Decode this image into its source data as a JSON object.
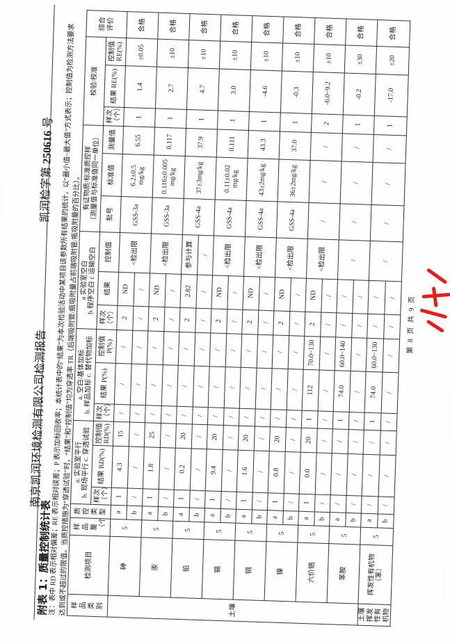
{
  "header": {
    "company_title": "南京凯润环境检测有限公司检测报告",
    "report_no_prefix": "凯润检字第",
    "report_no": "250616",
    "report_no_suffix": "号"
  },
  "table_title": "附表 1：质量控制统计表",
  "notes": [
    "注：表中 RD 表示相对偏差；RE 表示相对误差；P 表示加标回收率；本统计表中的“结果”为本次检验活动中某项目该参数所有结果的统计，以“最小值~最大值”方式表示；控制值为检测方法要求",
    "达到或不超过的限值。当质控措施为“穿透试验”时，“结果”和“控制值”均为穿透率 TR（后端吸附管/瓶吸附量占前端吸附管/瓶吸附量的百分比）。"
  ],
  "columns": {
    "category": "样品类别",
    "item": "检测项目",
    "sample_count": "样品量（个）",
    "qc_type": "质控类型",
    "parallel_group": [
      "a. 实验室平行",
      "b. 现场平行 c. 穿透试验"
    ],
    "spike_group": [
      "a. 空白/基体加标",
      "b. 样品加标 c. 替代物加标"
    ],
    "blank_group": [
      "a 实验室空白",
      "b 程序空白 c 运输空白"
    ],
    "crm_group": [
      "有证物质/标准质控样",
      "（测量值与标准值同一单位）"
    ],
    "calibration_group": "校验/校准",
    "evaluation": "综合评价",
    "count": "样次（个）",
    "result_rd": "结果 RD(%)",
    "control_rd": "控制值 RD(%)",
    "result_p": "结果 P(%)",
    "control_p": "控制值 P(%)",
    "result": "结果",
    "control": "控制值",
    "batch": "批号",
    "standard": "标准值",
    "measured": "测量值",
    "result_re": "结果 RE(%)",
    "control_re": "控制值 RE(%)"
  },
  "categories": [
    {
      "label": "土壤",
      "items": [
        {
          "name": "砷",
          "sample_count": "5",
          "rows": [
            {
              "type": "a",
              "parallel": [
                "1",
                "4.3",
                "15"
              ],
              "spike": [
                "/",
                "/",
                "/"
              ],
              "blank": [
                "2",
                "ND"
              ]
            },
            {
              "type": "b",
              "parallel": [
                "/",
                "/",
                "/"
              ],
              "spike": [
                "/",
                "/",
                "/"
              ],
              "blank": [
                "/",
                "/"
              ]
            }
          ],
          "blank_control": [
            "<检出限"
          ],
          "crm": [
            "GSS-3a",
            "6.2±0.5 mg/kg",
            "6.55"
          ],
          "calibration": [
            "1",
            "1.4",
            "±0.05"
          ],
          "evaluation": "合格"
        },
        {
          "name": "汞",
          "sample_count": "5",
          "rows": [
            {
              "type": "a",
              "parallel": [
                "1",
                "1.8",
                "25"
              ],
              "spike": [
                "/",
                "/",
                "/"
              ],
              "blank": [
                "2",
                "ND"
              ]
            },
            {
              "type": "b",
              "parallel": [
                "/",
                "/",
                "/"
              ],
              "spike": [
                "/",
                "/",
                "/"
              ],
              "blank": [
                "/",
                "/"
              ]
            }
          ],
          "blank_control": [
            "<检出限"
          ],
          "crm": [
            "GSS-3a",
            "0.116±0.005 mg/kg",
            "0.117"
          ],
          "calibration": [
            "1",
            "2.7",
            "±10"
          ],
          "evaluation": "合格"
        },
        {
          "name": "铅",
          "sample_count": "5",
          "rows": [
            {
              "type": "a",
              "parallel": [
                "1",
                "0.2",
                "20"
              ],
              "spike": [
                "/",
                "/",
                "/"
              ],
              "blank": [
                "2",
                "2.82"
              ]
            },
            {
              "type": "b",
              "parallel": [
                "/",
                "/",
                "/"
              ],
              "spike": [
                "/",
                "/",
                "/"
              ],
              "blank": [
                "/",
                "/"
              ]
            }
          ],
          "blank_control": [
            "参与计算",
            "/"
          ],
          "crm": [
            "GSS-4a",
            "37±3mg/kg",
            "37.9"
          ],
          "calibration": [
            "1",
            "4.7",
            "±10"
          ],
          "evaluation": "合格"
        },
        {
          "name": "镉",
          "sample_count": "5",
          "rows": [
            {
              "type": "a",
              "parallel": [
                "1",
                "9.4",
                "20"
              ],
              "spike": [
                "/",
                "/",
                "/"
              ],
              "blank": [
                "2",
                "ND"
              ]
            },
            {
              "type": "b",
              "parallel": [
                "/",
                "/",
                "/"
              ],
              "spike": [
                "/",
                "/",
                "/"
              ],
              "blank": [
                "/",
                "/"
              ]
            }
          ],
          "blank_control": [
            "<检出限"
          ],
          "crm": [
            "GSS-4a",
            "0.11±0.02 mg/kg",
            "0.111"
          ],
          "calibration": [
            "1",
            "3.0",
            "±10"
          ],
          "evaluation": "合格"
        },
        {
          "name": "铜",
          "sample_count": "5",
          "rows": [
            {
              "type": "a",
              "parallel": [
                "1",
                "1.6",
                "20"
              ],
              "spike": [
                "/",
                "/",
                "/"
              ],
              "blank": [
                "2",
                "ND"
              ]
            },
            {
              "type": "b",
              "parallel": [
                "/",
                "/",
                "/"
              ],
              "spike": [
                "/",
                "/",
                "/"
              ],
              "blank": [
                "/",
                "/"
              ]
            }
          ],
          "blank_control": [
            "<检出限"
          ],
          "crm": [
            "GSS-4a",
            "43±2mg/kg",
            "43.3"
          ],
          "calibration": [
            "1",
            "-4.6",
            "±10"
          ],
          "evaluation": "合格"
        },
        {
          "name": "镍",
          "sample_count": "5",
          "rows": [
            {
              "type": "a",
              "parallel": [
                "1",
                "0.8",
                "20"
              ],
              "spike": [
                "/",
                "/",
                "/"
              ],
              "blank": [
                "2",
                "ND"
              ]
            },
            {
              "type": "b",
              "parallel": [
                "/",
                "/",
                "/"
              ],
              "spike": [
                "/",
                "/",
                "/"
              ],
              "blank": [
                "/",
                "/"
              ]
            }
          ],
          "blank_control": [
            "<检出限"
          ],
          "crm": [
            "GSS-4a",
            "36±2mg/kg",
            "37.0"
          ],
          "calibration": [
            "1",
            "-0.3",
            "±10"
          ],
          "evaluation": "合格"
        },
        {
          "name": "六价铬",
          "sample_count": "5",
          "rows": [
            {
              "type": "a",
              "parallel": [
                "1",
                "0.0",
                "20"
              ],
              "spike": [
                "1",
                "112",
                "70.0~130"
              ],
              "blank": [
                "2",
                "ND"
              ]
            },
            {
              "type": "b",
              "parallel": [
                "/",
                "/",
                "/"
              ],
              "spike": [
                "/",
                "/",
                "/"
              ],
              "blank": [
                "/",
                "/"
              ]
            }
          ],
          "blank_control": [
            "<检出限"
          ],
          "crm": [
            "/",
            "/",
            "/"
          ],
          "calibration": [
            "2",
            "-6.0~9.2",
            "±10"
          ],
          "evaluation": "合格"
        },
        {
          "name": "苯胺",
          "sample_count": "5",
          "rows": [
            {
              "type": "a",
              "parallel": [
                "/",
                "/",
                "/"
              ],
              "spike": [
                "1",
                "74.0",
                "60.0~140"
              ],
              "blank": [
                "/",
                "/"
              ]
            },
            {
              "type": "b",
              "parallel": [
                "/",
                "/",
                "/"
              ],
              "spike": [
                "/",
                "/",
                "/"
              ],
              "blank": [
                "/",
                "/"
              ]
            }
          ],
          "blank_control": [
            "/"
          ],
          "crm": [
            "/",
            "/",
            "/"
          ],
          "calibration": [
            "1",
            "-0.2",
            "±30"
          ],
          "evaluation": "合格"
        }
      ]
    },
    {
      "label": "土壤挥发性有机物",
      "items": [
        {
          "name": "挥发性有机物（苯）",
          "sample_count": "5",
          "rows": [
            {
              "type": "a",
              "parallel": [
                "/",
                "/",
                "/"
              ],
              "spike": [
                "1",
                "74.0",
                "60.0~130"
              ],
              "blank": [
                "/",
                "/"
              ]
            },
            {
              "type": "b",
              "parallel": [
                "/",
                "/",
                "/"
              ],
              "spike": [
                "/",
                "/",
                "/"
              ],
              "blank": [
                "/",
                "/"
              ]
            }
          ],
          "blank_control": [
            "/"
          ],
          "crm": [
            "/",
            "/",
            "/"
          ],
          "calibration": [
            "1",
            "-17.0",
            "±20"
          ],
          "evaluation": "合格"
        }
      ]
    }
  ],
  "footer": "第 8 页 共 9 页",
  "seal_color": "#e0201c"
}
